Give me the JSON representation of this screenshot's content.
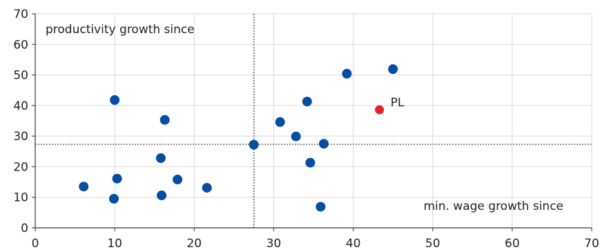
{
  "chart_data": {
    "type": "scatter",
    "title": "",
    "xlabel": "",
    "ylabel": "",
    "xlim": [
      0,
      70
    ],
    "ylim": [
      0,
      70
    ],
    "x_ticks": [
      0,
      10,
      20,
      30,
      40,
      50,
      60,
      70
    ],
    "y_ticks": [
      0,
      10,
      20,
      30,
      40,
      50,
      60,
      70
    ],
    "grid": "vertical",
    "annotations": {
      "y_axis_note": "productivity growth since",
      "x_axis_note": "min. wage growth since"
    },
    "reference_lines": {
      "x": 27.5,
      "y": 27.3
    },
    "colors": {
      "points": "#034ea2",
      "highlight": "#e5202e",
      "grid": "#d9d9d9",
      "reference": "#555555"
    },
    "points": [
      {
        "x": 6.1,
        "y": 13.5
      },
      {
        "x": 9.9,
        "y": 9.5
      },
      {
        "x": 10.0,
        "y": 41.8
      },
      {
        "x": 10.3,
        "y": 16.1
      },
      {
        "x": 15.8,
        "y": 22.8
      },
      {
        "x": 15.9,
        "y": 10.6
      },
      {
        "x": 16.3,
        "y": 35.3
      },
      {
        "x": 17.9,
        "y": 15.8
      },
      {
        "x": 21.6,
        "y": 13.1
      },
      {
        "x": 27.5,
        "y": 27.2
      },
      {
        "x": 30.8,
        "y": 34.6
      },
      {
        "x": 32.8,
        "y": 29.9
      },
      {
        "x": 34.2,
        "y": 41.3
      },
      {
        "x": 34.6,
        "y": 21.3
      },
      {
        "x": 35.9,
        "y": 6.9
      },
      {
        "x": 36.3,
        "y": 27.5
      },
      {
        "x": 39.2,
        "y": 50.4
      },
      {
        "x": 45.0,
        "y": 51.9
      }
    ],
    "highlight": {
      "label": "PL",
      "x": 43.3,
      "y": 38.6
    }
  }
}
